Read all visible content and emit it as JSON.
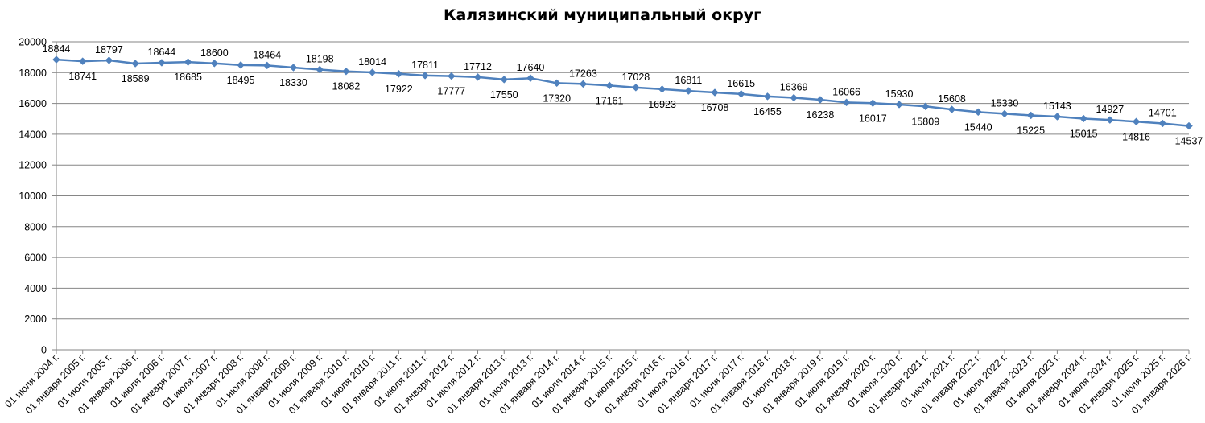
{
  "chart_data": {
    "type": "line",
    "title": "Калязинский муниципальный округ",
    "xlabel": "",
    "ylabel": "",
    "ylim": [
      0,
      20000
    ],
    "yticks": [
      0,
      2000,
      4000,
      6000,
      8000,
      10000,
      12000,
      14000,
      16000,
      18000,
      20000
    ],
    "grid": true,
    "legend": "none",
    "categories": [
      "01 июля 2004 г.",
      "01 января 2005 г.",
      "01 июля 2005 г.",
      "01 января 2006 г.",
      "01 июля 2006 г.",
      "01 января 2007 г.",
      "01 июля 2007 г.",
      "01 января 2008 г.",
      "01 июля 2008 г.",
      "01 января 2009 г.",
      "01 июля 2009 г.",
      "01 января 2010 г.",
      "01 июля 2010 г.",
      "01 января 2011 г.",
      "01 июля 2011 г.",
      "01 января 2012 г.",
      "01 июля 2012 г.",
      "01 января 2013 г.",
      "01 июля 2013 г.",
      "01 января 2014 г.",
      "01 июля 2014 г.",
      "01 января 2015 г.",
      "01 июля 2015 г.",
      "01 января 2016 г.",
      "01 июля 2016 г.",
      "01 января 2017 г.",
      "01 июля 2017 г.",
      "01 января 2018 г.",
      "01 июля 2018 г.",
      "01 января 2019 г.",
      "01 июля 2019 г.",
      "01 января 2020 г.",
      "01 июля 2020 г.",
      "01 января 2021 г.",
      "01 июля 2021 г.",
      "01 января 2022 г.",
      "01 июля 2022 г.",
      "01 января 2023 г.",
      "01 июля 2023 г.",
      "01 января 2024 г.",
      "01 июля 2024 г.",
      "01 января 2025 г.",
      "01 июля 2025 г.",
      "01 января 2026 г."
    ],
    "series": [
      {
        "values": [
          18844,
          18741,
          18797,
          18589,
          18644,
          18685,
          18600,
          18495,
          18464,
          18330,
          18198,
          18082,
          18014,
          17922,
          17811,
          17777,
          17712,
          17550,
          17640,
          17320,
          17263,
          17161,
          17028,
          16923,
          16811,
          16708,
          16615,
          16455,
          16369,
          16238,
          16066,
          16017,
          15930,
          15809,
          15608,
          15440,
          15330,
          15225,
          15143,
          15015,
          14927,
          14816,
          14701,
          14537
        ],
        "color": "#4F81BD"
      }
    ]
  }
}
